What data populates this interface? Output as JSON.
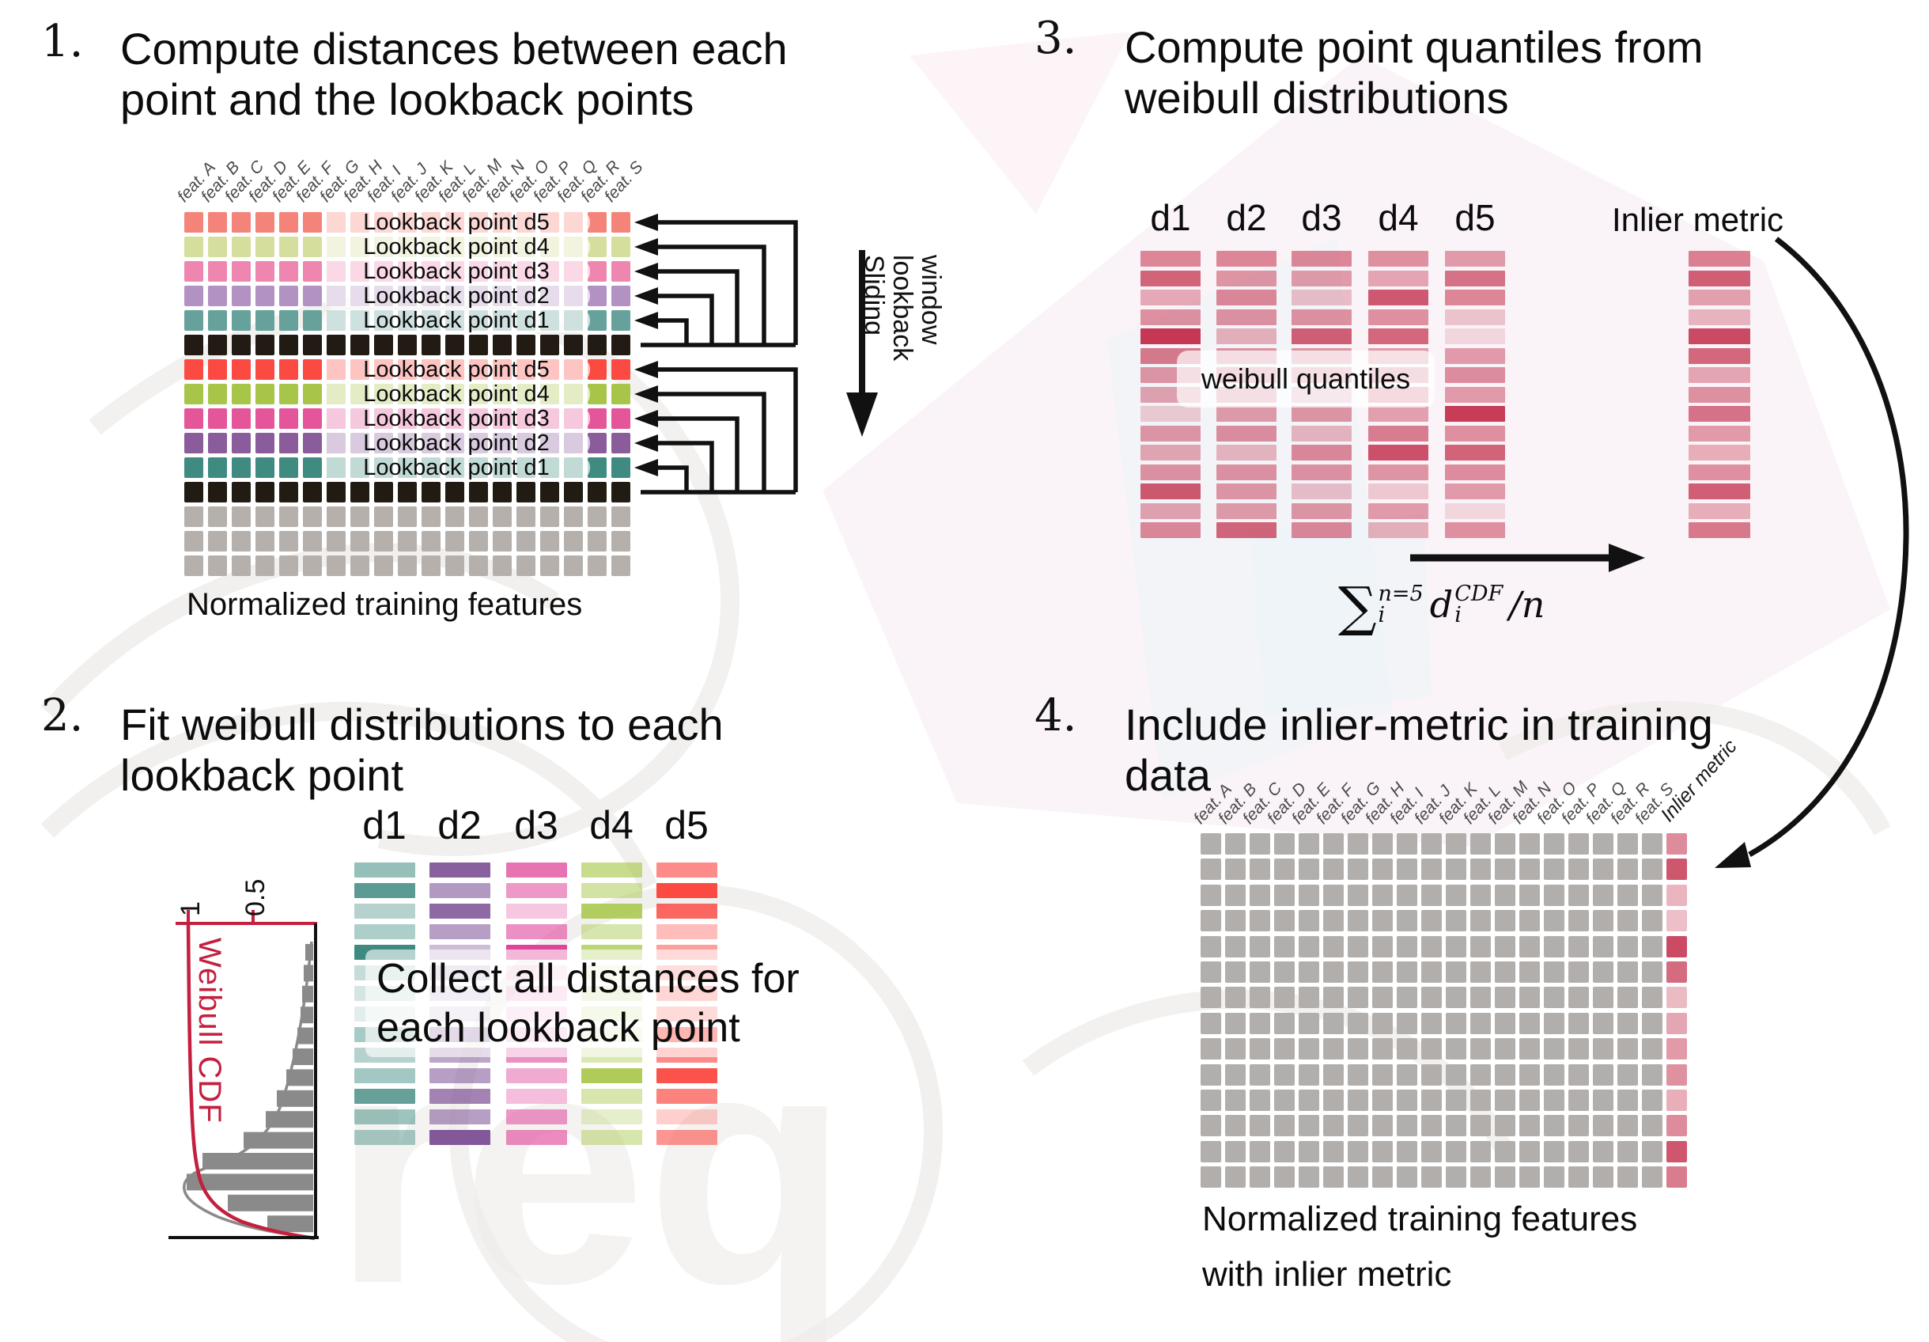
{
  "features": [
    "feat. A",
    "feat. B",
    "feat. C",
    "feat. D",
    "feat. E",
    "feat. F",
    "feat. G",
    "feat. H",
    "feat. I",
    "feat. J",
    "feat. K",
    "feat. L",
    "feat. M",
    "feat. N",
    "feat. O",
    "feat. P",
    "feat. Q",
    "feat. R",
    "feat. S"
  ],
  "d_labels": [
    "d1",
    "d2",
    "d3",
    "d4",
    "d5"
  ],
  "colors": {
    "crimson": "#c22c49",
    "red_accent": "#c41f3e",
    "black_row": "#221b14",
    "gray_row": "#b5b0ac",
    "gray_cell": "#b2aeab",
    "hist_gray": "#808080"
  },
  "step1": {
    "number": "1.",
    "title": [
      "Compute distances between each",
      "point and the lookback points"
    ],
    "caption": "Normalized training features",
    "sliding": [
      "Sliding",
      "lookback",
      "window"
    ],
    "rows": [
      {
        "color": "#f4837a",
        "label": "Lookback point d5"
      },
      {
        "color": "#d6de9e",
        "label": "Lookback point d4"
      },
      {
        "color": "#ee86af",
        "label": "Lookback point d3"
      },
      {
        "color": "#b192c2",
        "label": "Lookback point d2"
      },
      {
        "color": "#66a29b",
        "label": "Lookback point d1"
      },
      {
        "color": "#221b14",
        "label": null
      },
      {
        "color": "#fb4a41",
        "label": "Lookback point d5"
      },
      {
        "color": "#a7c548",
        "label": "Lookback point d4"
      },
      {
        "color": "#e4559a",
        "label": "Lookback point d3"
      },
      {
        "color": "#8a5c9b",
        "label": "Lookback point d2"
      },
      {
        "color": "#3f8b81",
        "label": "Lookback point d1"
      },
      {
        "color": "#221b14",
        "label": null
      },
      {
        "color": "#b5b0ac",
        "label": null
      },
      {
        "color": "#b5b0ac",
        "label": null
      },
      {
        "color": "#b5b0ac",
        "label": null
      }
    ]
  },
  "step2": {
    "number": "2.",
    "title": [
      "Fit weibull distributions to each",
      "lookback point"
    ],
    "overlay": [
      "Collect all distances for",
      "each lookback point"
    ],
    "plot": {
      "label": "Weibull CDF",
      "ticks": [
        "1",
        "0.5"
      ],
      "hist": [
        10,
        12,
        14,
        16,
        20,
        26,
        34,
        46,
        60,
        88,
        140,
        160,
        108,
        58
      ]
    },
    "columns": [
      {
        "key": "d1",
        "color": "#3e8a80",
        "opacities": [
          0.55,
          0.85,
          0.38,
          0.42,
          1.0,
          0.3,
          0.22,
          0.15,
          0.45,
          0.38,
          0.48,
          0.8,
          0.5,
          0.45
        ]
      },
      {
        "key": "d2",
        "color": "#7b4f94",
        "opacities": [
          0.9,
          0.58,
          0.85,
          0.55,
          0.38,
          0.3,
          0.25,
          0.2,
          0.55,
          0.5,
          0.55,
          0.7,
          0.55,
          0.95
        ]
      },
      {
        "key": "d3",
        "color": "#e0449a",
        "opacities": [
          0.75,
          0.55,
          0.3,
          0.6,
          1.0,
          0.18,
          0.3,
          0.22,
          0.28,
          0.6,
          0.45,
          0.35,
          0.55,
          0.62
        ]
      },
      {
        "key": "d4",
        "color": "#a6c747",
        "opacities": [
          0.62,
          0.5,
          0.85,
          0.45,
          0.75,
          0.22,
          0.35,
          0.3,
          0.25,
          0.42,
          0.9,
          0.45,
          0.28,
          0.45
        ]
      },
      {
        "key": "d5",
        "color": "#fb4038",
        "opacities": [
          0.6,
          0.95,
          0.8,
          0.35,
          0.5,
          0.45,
          0.55,
          0.5,
          1.0,
          0.6,
          0.9,
          0.65,
          0.25,
          0.55
        ]
      }
    ]
  },
  "step3": {
    "number": "3.",
    "title": [
      "Compute point quantiles from",
      "weibull distributions"
    ],
    "overlay": "weibull quantiles",
    "inlier_label": "Inlier metric",
    "base_color": "#c22c49",
    "columns_opacities": [
      [
        0.55,
        0.72,
        0.38,
        0.5,
        0.95,
        0.62,
        0.48,
        0.42,
        0.22,
        0.48,
        0.4,
        0.5,
        0.78,
        0.42,
        0.55
      ],
      [
        0.55,
        0.48,
        0.55,
        0.5,
        0.35,
        0.5,
        0.52,
        0.48,
        0.45,
        0.52,
        0.32,
        0.5,
        0.48,
        0.45,
        0.72
      ],
      [
        0.55,
        0.45,
        0.28,
        0.5,
        0.75,
        0.48,
        0.45,
        0.32,
        0.48,
        0.32,
        0.55,
        0.5,
        0.28,
        0.48,
        0.55
      ],
      [
        0.5,
        0.4,
        0.78,
        0.5,
        0.7,
        0.45,
        0.5,
        0.55,
        0.42,
        0.6,
        0.82,
        0.48,
        0.22,
        0.45,
        0.35
      ],
      [
        0.45,
        0.65,
        0.55,
        0.25,
        0.15,
        0.45,
        0.52,
        0.45,
        0.92,
        0.5,
        0.72,
        0.52,
        0.45,
        0.15,
        0.5
      ]
    ],
    "inlier_opacities": [
      0.58,
      0.75,
      0.42,
      0.32,
      0.85,
      0.7,
      0.4,
      0.5,
      0.65,
      0.45,
      0.35,
      0.5,
      0.75,
      0.35,
      0.62
    ],
    "formula": {
      "sum": "∑",
      "upper": "n=5",
      "lower": "i",
      "var": "d",
      "var_sup": "CDF",
      "var_sub": "i",
      "tail": "/n"
    }
  },
  "step4": {
    "number": "4.",
    "title": [
      "Include inlier-metric in training",
      "data"
    ],
    "caption": [
      "Normalized training features",
      "with inlier metric"
    ],
    "inlier_label": "Inlier metric",
    "base_color": "#c22c49",
    "gray": "#b2aeab",
    "inlier_opacities": [
      0.55,
      0.8,
      0.35,
      0.3,
      0.85,
      0.7,
      0.32,
      0.42,
      0.48,
      0.52,
      0.38,
      0.55,
      0.8,
      0.62
    ]
  }
}
